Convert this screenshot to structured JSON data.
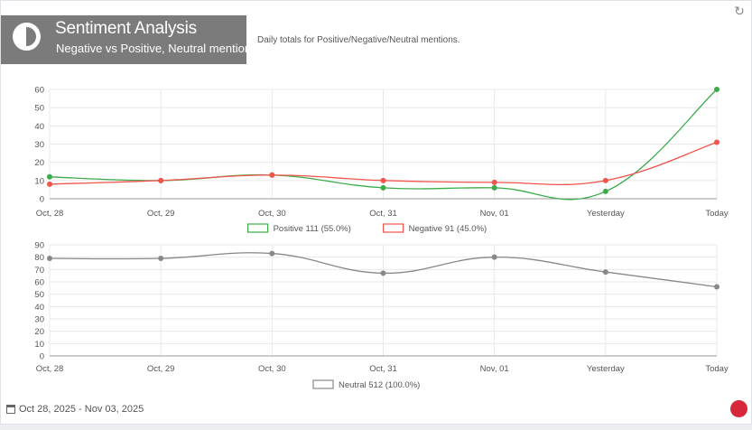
{
  "header": {
    "title": "Sentiment Analysis",
    "subtitle": "Negative vs Positive, Neutral mentions",
    "description": "Daily totals for Positive/Negative/Neutral mentions.",
    "refresh_icon": "refresh-icon",
    "title_icon": "half-circle-icon"
  },
  "footer": {
    "date_range": "Oct 28, 2025 - Nov 03, 2025",
    "calendar_icon": "calendar-icon",
    "logo_icon": "brand-logo-icon"
  },
  "colors": {
    "positive": "#3cab4a",
    "negative": "#f2544c",
    "neutral": "#888888",
    "grid": "#e8e8e8",
    "axis_text": "#555555"
  },
  "chart_data": [
    {
      "type": "line",
      "categories": [
        "Oct, 28",
        "Oct, 29",
        "Oct, 30",
        "Oct, 31",
        "Nov, 01",
        "Yesterday",
        "Today"
      ],
      "ylim": [
        0,
        60
      ],
      "yticks": [
        0,
        10,
        20,
        30,
        40,
        50,
        60
      ],
      "grid": true,
      "legend_position": "bottom",
      "series": [
        {
          "name": "Positive 111 (55.0%)",
          "color": "#3cab4a",
          "values": [
            12,
            10,
            13,
            6,
            6,
            4,
            60
          ]
        },
        {
          "name": "Negative 91 (45.0%)",
          "color": "#f2544c",
          "values": [
            8,
            10,
            13,
            10,
            9,
            10,
            31
          ]
        }
      ]
    },
    {
      "type": "line",
      "categories": [
        "Oct, 28",
        "Oct, 29",
        "Oct, 30",
        "Oct, 31",
        "Nov, 01",
        "Yesterday",
        "Today"
      ],
      "ylim": [
        0,
        90
      ],
      "yticks": [
        0,
        10,
        20,
        30,
        40,
        50,
        60,
        70,
        80,
        90
      ],
      "grid": true,
      "legend_position": "bottom",
      "series": [
        {
          "name": "Neutral 512 (100.0%)",
          "color": "#888888",
          "values": [
            79,
            79,
            83,
            67,
            80,
            68,
            56
          ]
        }
      ]
    }
  ]
}
